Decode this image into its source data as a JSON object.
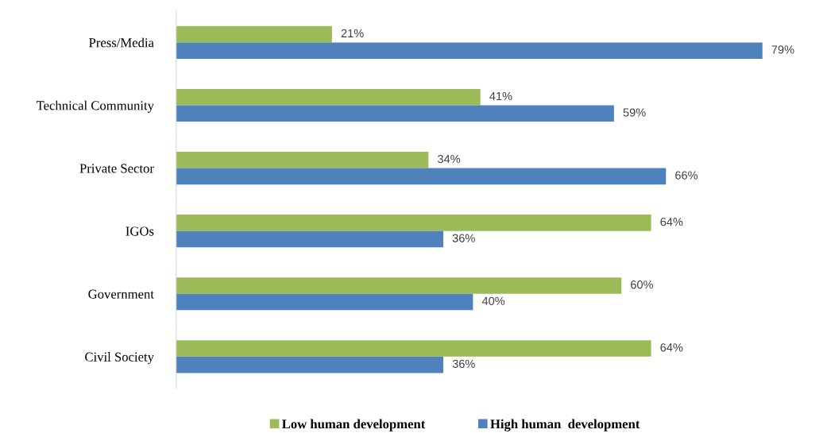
{
  "chart_data": {
    "type": "bar",
    "orientation": "horizontal",
    "categories": [
      "Press/Media",
      "Technical Community",
      "Private Sector",
      "IGOs",
      "Government",
      "Civil Society"
    ],
    "series": [
      {
        "name": "Low human development",
        "color": "#9bbb59",
        "values": [
          21,
          41,
          34,
          64,
          60,
          64
        ],
        "value_labels": [
          "21%",
          "41%",
          "34%",
          "64%",
          "60%",
          "64%"
        ]
      },
      {
        "name": "High human  development",
        "color": "#4f81bd",
        "values": [
          79,
          59,
          66,
          36,
          40,
          36
        ],
        "value_labels": [
          "79%",
          "59%",
          "66%",
          "36%",
          "40%",
          "36%"
        ]
      }
    ],
    "tick_labels": "y",
    "grid": false,
    "legend": "bottom"
  }
}
